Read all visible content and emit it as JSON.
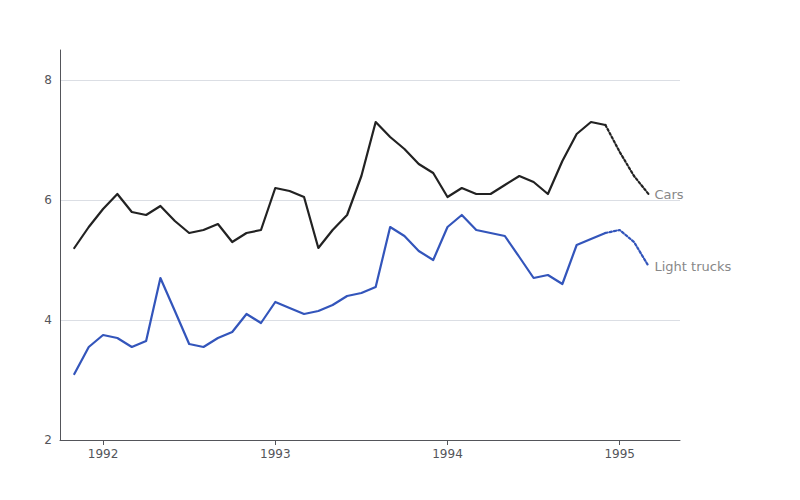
{
  "chart_data": {
    "type": "line",
    "x": [
      1991.833,
      1991.917,
      1992.0,
      1992.083,
      1992.167,
      1992.25,
      1992.333,
      1992.417,
      1992.5,
      1992.583,
      1992.667,
      1992.75,
      1992.833,
      1992.917,
      1993.0,
      1993.083,
      1993.167,
      1993.25,
      1993.333,
      1993.417,
      1993.5,
      1993.583,
      1993.667,
      1993.75,
      1993.833,
      1993.917,
      1994.0,
      1994.083,
      1994.167,
      1994.25,
      1994.333,
      1994.417,
      1994.5,
      1994.583,
      1994.667,
      1994.75,
      1994.833,
      1994.917,
      1995.0,
      1995.083,
      1995.167
    ],
    "series": [
      {
        "name": "Cars",
        "color": "#222222",
        "line_style": "solid",
        "values": [
          5.2,
          5.55,
          5.85,
          6.1,
          5.8,
          5.75,
          5.9,
          5.65,
          5.45,
          5.5,
          5.6,
          5.3,
          5.45,
          5.5,
          6.2,
          6.15,
          6.05,
          5.2,
          5.5,
          5.75,
          6.4,
          7.3,
          7.05,
          6.85,
          6.6,
          6.45,
          6.05,
          6.2,
          6.1,
          6.1,
          6.25,
          6.4,
          6.3,
          6.1,
          6.65,
          7.1,
          7.3,
          7.25,
          null,
          null,
          null
        ]
      },
      {
        "name": "Cars",
        "color": "#222222",
        "line_style": "dotted",
        "values": [
          null,
          null,
          null,
          null,
          null,
          null,
          null,
          null,
          null,
          null,
          null,
          null,
          null,
          null,
          null,
          null,
          null,
          null,
          null,
          null,
          null,
          null,
          null,
          null,
          null,
          null,
          null,
          null,
          null,
          null,
          null,
          null,
          null,
          null,
          null,
          null,
          null,
          7.25,
          6.8,
          6.4,
          6.1
        ]
      },
      {
        "name": "Light trucks",
        "color": "#3355bb",
        "line_style": "solid",
        "values": [
          3.1,
          3.55,
          3.75,
          3.7,
          3.55,
          3.65,
          4.7,
          4.15,
          3.6,
          3.55,
          3.7,
          3.8,
          4.1,
          3.95,
          4.3,
          4.2,
          4.1,
          4.15,
          4.25,
          4.4,
          4.45,
          4.55,
          5.55,
          5.4,
          5.15,
          5.0,
          5.55,
          5.75,
          5.5,
          5.45,
          5.4,
          5.05,
          4.7,
          4.75,
          4.6,
          5.25,
          5.35,
          5.45,
          null,
          null,
          null
        ]
      },
      {
        "name": "Light trucks",
        "color": "#3355bb",
        "line_style": "dotted",
        "values": [
          null,
          null,
          null,
          null,
          null,
          null,
          null,
          null,
          null,
          null,
          null,
          null,
          null,
          null,
          null,
          null,
          null,
          null,
          null,
          null,
          null,
          null,
          null,
          null,
          null,
          null,
          null,
          null,
          null,
          null,
          null,
          null,
          null,
          null,
          null,
          null,
          null,
          5.45,
          5.5,
          5.3,
          4.9
        ]
      }
    ],
    "xlim": [
      1991.75,
      1995.35
    ],
    "xticks": [
      1992,
      1993,
      1994,
      1995
    ],
    "ylim": [
      2,
      8.5
    ],
    "yticks": [
      2,
      4,
      6,
      8
    ],
    "grid": true
  }
}
